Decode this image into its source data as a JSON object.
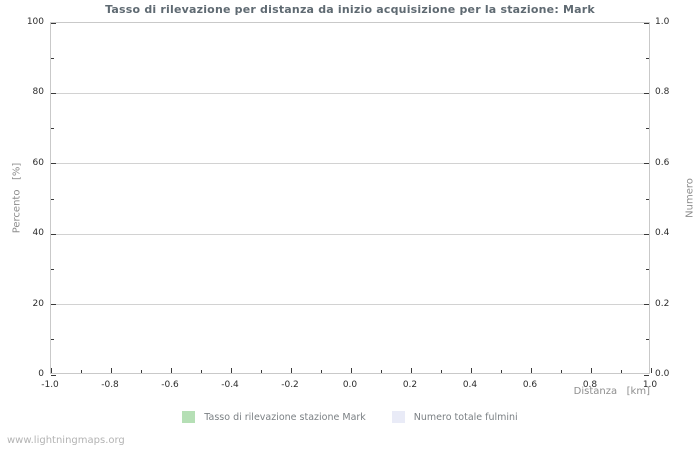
{
  "watermark": "www.lightningmaps.org",
  "chart_data": {
    "type": "line",
    "title": "Tasso di rilevazione per distanza da inizio acquisizione per la stazione: Mark",
    "grid": "horizontal-only",
    "legend_position": "bottom-center",
    "x_axis": {
      "label": "Distanza   [km]",
      "range": [
        -1.0,
        1.0
      ],
      "ticks": [
        -1.0,
        -0.8,
        -0.6,
        -0.4,
        -0.2,
        0.0,
        0.2,
        0.4,
        0.6,
        0.8,
        1.0
      ],
      "tick_labels": [
        "-1.0",
        "-0.8",
        "-0.6",
        "-0.4",
        "-0.2",
        "0.0",
        "0.2",
        "0.4",
        "0.6",
        "0.8",
        "1.0"
      ],
      "minor_ticks_per_interval": 1
    },
    "y_axis_left": {
      "label": "Percento   [%]",
      "range": [
        0,
        100
      ],
      "ticks": [
        0,
        20,
        40,
        60,
        80,
        100
      ],
      "tick_labels": [
        "0",
        "20",
        "40",
        "60",
        "80",
        "100"
      ],
      "minor_ticks_per_interval": 1
    },
    "y_axis_right": {
      "label": "Numero",
      "range": [
        0.0,
        1.0
      ],
      "ticks": [
        0.0,
        0.2,
        0.4,
        0.6,
        0.8,
        1.0
      ],
      "tick_labels": [
        "0.0",
        "0.2",
        "0.4",
        "0.6",
        "0.8",
        "1.0"
      ],
      "minor_ticks_per_interval": 1
    },
    "series": [
      {
        "name": "Tasso di rilevazione stazione Mark",
        "color": "#b5dfb5",
        "axis": "left",
        "x": [],
        "values": []
      },
      {
        "name": "Numero totale fulmini",
        "color": "#e9ebf7",
        "axis": "right",
        "x": [],
        "values": []
      }
    ]
  }
}
